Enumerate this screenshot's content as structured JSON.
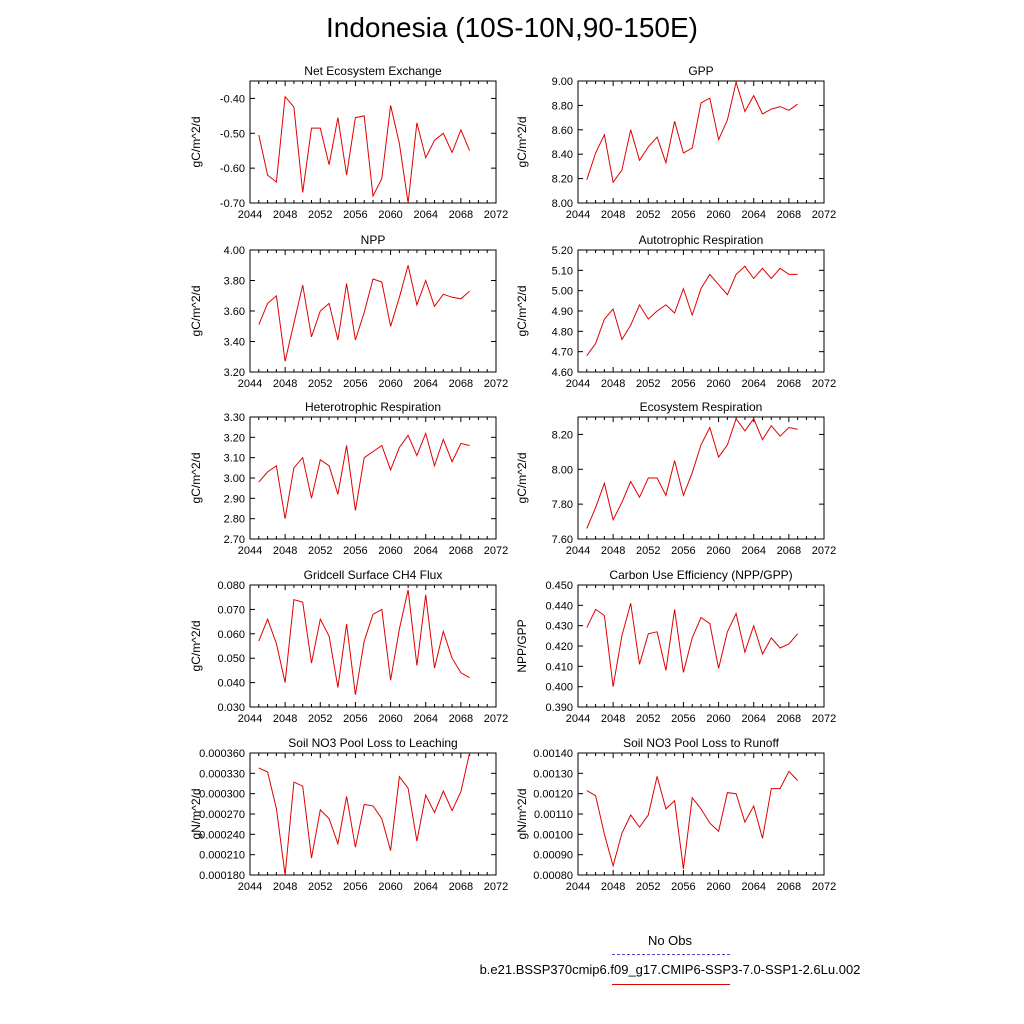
{
  "title": "Indonesia (10S-10N,90-150E)",
  "legend": {
    "obs_label": "No Obs",
    "obs_color": "#4b4bd6",
    "case_label": "b.e21.BSSP370cmip6.f09_g17.CMIP6-SSP3-7.0-SSP1-2.6Lu.002",
    "case_color": "#e00000"
  },
  "chart_data": [
    {
      "type": "line",
      "title": "Net Ecosystem Exchange",
      "ylabel": "gC/m^2/d",
      "xlim": [
        2044,
        2072
      ],
      "ylim": [
        -0.7,
        -0.35
      ],
      "xticks": [
        2044,
        2048,
        2052,
        2056,
        2060,
        2064,
        2068,
        2072
      ],
      "yticks": [
        -0.7,
        -0.6,
        -0.5,
        -0.4
      ],
      "ytick_labels": [
        "-0.70",
        "-0.60",
        "-0.50",
        "-0.40"
      ],
      "x": [
        2045,
        2046,
        2047,
        2048,
        2049,
        2050,
        2051,
        2052,
        2053,
        2054,
        2055,
        2056,
        2057,
        2058,
        2059,
        2060,
        2061,
        2062,
        2063,
        2064,
        2065,
        2066,
        2067,
        2068,
        2069
      ],
      "values": [
        -0.505,
        -0.62,
        -0.64,
        -0.395,
        -0.425,
        -0.67,
        -0.485,
        -0.485,
        -0.59,
        -0.455,
        -0.62,
        -0.455,
        -0.45,
        -0.68,
        -0.63,
        -0.42,
        -0.53,
        -0.7,
        -0.47,
        -0.57,
        -0.52,
        -0.5,
        -0.555,
        -0.49,
        -0.55
      ]
    },
    {
      "type": "line",
      "title": "GPP",
      "ylabel": "gC/m^2/d",
      "xlim": [
        2044,
        2072
      ],
      "ylim": [
        8.0,
        9.0
      ],
      "xticks": [
        2044,
        2048,
        2052,
        2056,
        2060,
        2064,
        2068,
        2072
      ],
      "yticks": [
        8.0,
        8.2,
        8.4,
        8.6,
        8.8,
        9.0
      ],
      "ytick_labels": [
        "8.00",
        "8.20",
        "8.40",
        "8.60",
        "8.80",
        "9.00"
      ],
      "x": [
        2045,
        2046,
        2047,
        2048,
        2049,
        2050,
        2051,
        2052,
        2053,
        2054,
        2055,
        2056,
        2057,
        2058,
        2059,
        2060,
        2061,
        2062,
        2063,
        2064,
        2065,
        2066,
        2067,
        2068,
        2069
      ],
      "values": [
        8.19,
        8.41,
        8.56,
        8.17,
        8.27,
        8.6,
        8.35,
        8.46,
        8.54,
        8.33,
        8.67,
        8.41,
        8.45,
        8.82,
        8.86,
        8.52,
        8.68,
        8.99,
        8.75,
        8.88,
        8.73,
        8.77,
        8.79,
        8.76,
        8.81
      ]
    },
    {
      "type": "line",
      "title": "NPP",
      "ylabel": "gC/m^2/d",
      "xlim": [
        2044,
        2072
      ],
      "ylim": [
        3.2,
        4.0
      ],
      "xticks": [
        2044,
        2048,
        2052,
        2056,
        2060,
        2064,
        2068,
        2072
      ],
      "yticks": [
        3.2,
        3.4,
        3.6,
        3.8,
        4.0
      ],
      "ytick_labels": [
        "3.20",
        "3.40",
        "3.60",
        "3.80",
        "4.00"
      ],
      "x": [
        2045,
        2046,
        2047,
        2048,
        2049,
        2050,
        2051,
        2052,
        2053,
        2054,
        2055,
        2056,
        2057,
        2058,
        2059,
        2060,
        2061,
        2062,
        2063,
        2064,
        2065,
        2066,
        2067,
        2068,
        2069
      ],
      "values": [
        3.51,
        3.65,
        3.7,
        3.27,
        3.52,
        3.77,
        3.43,
        3.6,
        3.65,
        3.41,
        3.78,
        3.41,
        3.59,
        3.81,
        3.79,
        3.5,
        3.69,
        3.9,
        3.64,
        3.8,
        3.63,
        3.71,
        3.69,
        3.68,
        3.73
      ]
    },
    {
      "type": "line",
      "title": "Autotrophic Respiration",
      "ylabel": "gC/m^2/d",
      "xlim": [
        2044,
        2072
      ],
      "ylim": [
        4.6,
        5.2
      ],
      "xticks": [
        2044,
        2048,
        2052,
        2056,
        2060,
        2064,
        2068,
        2072
      ],
      "yticks": [
        4.6,
        4.7,
        4.8,
        4.9,
        5.0,
        5.1,
        5.2
      ],
      "ytick_labels": [
        "4.60",
        "4.70",
        "4.80",
        "4.90",
        "5.00",
        "5.10",
        "5.20"
      ],
      "x": [
        2045,
        2046,
        2047,
        2048,
        2049,
        2050,
        2051,
        2052,
        2053,
        2054,
        2055,
        2056,
        2057,
        2058,
        2059,
        2060,
        2061,
        2062,
        2063,
        2064,
        2065,
        2066,
        2067,
        2068,
        2069
      ],
      "values": [
        4.68,
        4.74,
        4.86,
        4.91,
        4.76,
        4.83,
        4.93,
        4.86,
        4.9,
        4.93,
        4.89,
        5.01,
        4.88,
        5.01,
        5.08,
        5.03,
        4.98,
        5.08,
        5.12,
        5.06,
        5.11,
        5.06,
        5.11,
        5.08,
        5.08
      ]
    },
    {
      "type": "line",
      "title": "Heterotrophic Respiration",
      "ylabel": "gC/m^2/d",
      "xlim": [
        2044,
        2072
      ],
      "ylim": [
        2.7,
        3.3
      ],
      "xticks": [
        2044,
        2048,
        2052,
        2056,
        2060,
        2064,
        2068,
        2072
      ],
      "yticks": [
        2.7,
        2.8,
        2.9,
        3.0,
        3.1,
        3.2,
        3.3
      ],
      "ytick_labels": [
        "2.70",
        "2.80",
        "2.90",
        "3.00",
        "3.10",
        "3.20",
        "3.30"
      ],
      "x": [
        2045,
        2046,
        2047,
        2048,
        2049,
        2050,
        2051,
        2052,
        2053,
        2054,
        2055,
        2056,
        2057,
        2058,
        2059,
        2060,
        2061,
        2062,
        2063,
        2064,
        2065,
        2066,
        2067,
        2068,
        2069
      ],
      "values": [
        2.98,
        3.03,
        3.06,
        2.8,
        3.05,
        3.1,
        2.9,
        3.09,
        3.06,
        2.92,
        3.16,
        2.84,
        3.1,
        3.13,
        3.16,
        3.04,
        3.15,
        3.21,
        3.11,
        3.22,
        3.06,
        3.19,
        3.08,
        3.17,
        3.16
      ]
    },
    {
      "type": "line",
      "title": "Ecosystem Respiration",
      "ylabel": "gC/m^2/d",
      "xlim": [
        2044,
        2072
      ],
      "ylim": [
        7.6,
        8.3
      ],
      "xticks": [
        2044,
        2048,
        2052,
        2056,
        2060,
        2064,
        2068,
        2072
      ],
      "yticks": [
        7.6,
        7.8,
        8.0,
        8.2
      ],
      "ytick_labels": [
        "7.60",
        "7.80",
        "8.00",
        "8.20"
      ],
      "x": [
        2045,
        2046,
        2047,
        2048,
        2049,
        2050,
        2051,
        2052,
        2053,
        2054,
        2055,
        2056,
        2057,
        2058,
        2059,
        2060,
        2061,
        2062,
        2063,
        2064,
        2065,
        2066,
        2067,
        2068,
        2069
      ],
      "values": [
        7.66,
        7.78,
        7.92,
        7.71,
        7.81,
        7.93,
        7.84,
        7.95,
        7.95,
        7.85,
        8.05,
        7.85,
        7.98,
        8.14,
        8.24,
        8.07,
        8.14,
        8.29,
        8.22,
        8.29,
        8.17,
        8.25,
        8.19,
        8.24,
        8.23
      ]
    },
    {
      "type": "line",
      "title": "Gridcell Surface CH4 Flux",
      "ylabel": "gC/m^2/d",
      "xlim": [
        2044,
        2072
      ],
      "ylim": [
        0.03,
        0.08
      ],
      "xticks": [
        2044,
        2048,
        2052,
        2056,
        2060,
        2064,
        2068,
        2072
      ],
      "yticks": [
        0.03,
        0.04,
        0.05,
        0.06,
        0.07,
        0.08
      ],
      "ytick_labels": [
        "0.030",
        "0.040",
        "0.050",
        "0.060",
        "0.070",
        "0.080"
      ],
      "x": [
        2045,
        2046,
        2047,
        2048,
        2049,
        2050,
        2051,
        2052,
        2053,
        2054,
        2055,
        2056,
        2057,
        2058,
        2059,
        2060,
        2061,
        2062,
        2063,
        2064,
        2065,
        2066,
        2067,
        2068,
        2069
      ],
      "values": [
        0.057,
        0.066,
        0.056,
        0.04,
        0.074,
        0.073,
        0.048,
        0.066,
        0.059,
        0.038,
        0.064,
        0.035,
        0.057,
        0.068,
        0.07,
        0.041,
        0.062,
        0.078,
        0.047,
        0.076,
        0.046,
        0.061,
        0.05,
        0.044,
        0.042
      ]
    },
    {
      "type": "line",
      "title": "Carbon Use Efficiency (NPP/GPP)",
      "ylabel": "NPP/GPP",
      "xlim": [
        2044,
        2072
      ],
      "ylim": [
        0.39,
        0.45
      ],
      "xticks": [
        2044,
        2048,
        2052,
        2056,
        2060,
        2064,
        2068,
        2072
      ],
      "yticks": [
        0.39,
        0.4,
        0.41,
        0.42,
        0.43,
        0.44,
        0.45
      ],
      "ytick_labels": [
        "0.390",
        "0.400",
        "0.410",
        "0.420",
        "0.430",
        "0.440",
        "0.450"
      ],
      "x": [
        2045,
        2046,
        2047,
        2048,
        2049,
        2050,
        2051,
        2052,
        2053,
        2054,
        2055,
        2056,
        2057,
        2058,
        2059,
        2060,
        2061,
        2062,
        2063,
        2064,
        2065,
        2066,
        2067,
        2068,
        2069
      ],
      "values": [
        0.429,
        0.438,
        0.435,
        0.4,
        0.425,
        0.441,
        0.411,
        0.426,
        0.427,
        0.408,
        0.438,
        0.407,
        0.424,
        0.434,
        0.431,
        0.409,
        0.427,
        0.436,
        0.417,
        0.43,
        0.416,
        0.424,
        0.419,
        0.421,
        0.426
      ]
    },
    {
      "type": "line",
      "title": "Soil NO3 Pool Loss to Leaching",
      "ylabel": "gN/m^2/d",
      "xlim": [
        2044,
        2072
      ],
      "ylim": [
        0.00018,
        0.00036
      ],
      "xticks": [
        2044,
        2048,
        2052,
        2056,
        2060,
        2064,
        2068,
        2072
      ],
      "yticks": [
        0.00018,
        0.00021,
        0.00024,
        0.00027,
        0.0003,
        0.00033,
        0.00036
      ],
      "ytick_labels": [
        "0.000180",
        "0.000210",
        "0.000240",
        "0.000270",
        "0.000300",
        "0.000330",
        "0.000360"
      ],
      "x": [
        2045,
        2046,
        2047,
        2048,
        2049,
        2050,
        2051,
        2052,
        2053,
        2054,
        2055,
        2056,
        2057,
        2058,
        2059,
        2060,
        2061,
        2062,
        2063,
        2064,
        2065,
        2066,
        2067,
        2068,
        2069
      ],
      "values": [
        0.000338,
        0.000332,
        0.000278,
        0.00018,
        0.000317,
        0.000311,
        0.000205,
        0.000276,
        0.000263,
        0.000226,
        0.000296,
        0.000221,
        0.000284,
        0.000282,
        0.000263,
        0.000216,
        0.000325,
        0.000308,
        0.00023,
        0.000298,
        0.000272,
        0.000304,
        0.000275,
        0.000303,
        0.00036
      ]
    },
    {
      "type": "line",
      "title": "Soil NO3 Pool Loss to Runoff",
      "ylabel": "gN/m^2/d",
      "xlim": [
        2044,
        2072
      ],
      "ylim": [
        0.0008,
        0.0014
      ],
      "xticks": [
        2044,
        2048,
        2052,
        2056,
        2060,
        2064,
        2068,
        2072
      ],
      "yticks": [
        0.0008,
        0.0009,
        0.001,
        0.0011,
        0.0012,
        0.0013,
        0.0014
      ],
      "ytick_labels": [
        "0.00080",
        "0.00090",
        "0.00100",
        "0.00110",
        "0.00120",
        "0.00130",
        "0.00140"
      ],
      "x": [
        2045,
        2046,
        2047,
        2048,
        2049,
        2050,
        2051,
        2052,
        2053,
        2054,
        2055,
        2056,
        2057,
        2058,
        2059,
        2060,
        2061,
        2062,
        2063,
        2064,
        2065,
        2066,
        2067,
        2068,
        2069
      ],
      "values": [
        0.001215,
        0.00119,
        0.001,
        0.000845,
        0.001005,
        0.001095,
        0.001035,
        0.001095,
        0.001285,
        0.001125,
        0.001165,
        0.00083,
        0.00118,
        0.001125,
        0.001055,
        0.001015,
        0.001205,
        0.0012,
        0.00106,
        0.00114,
        0.00098,
        0.001225,
        0.001225,
        0.00131,
        0.001265
      ]
    }
  ]
}
